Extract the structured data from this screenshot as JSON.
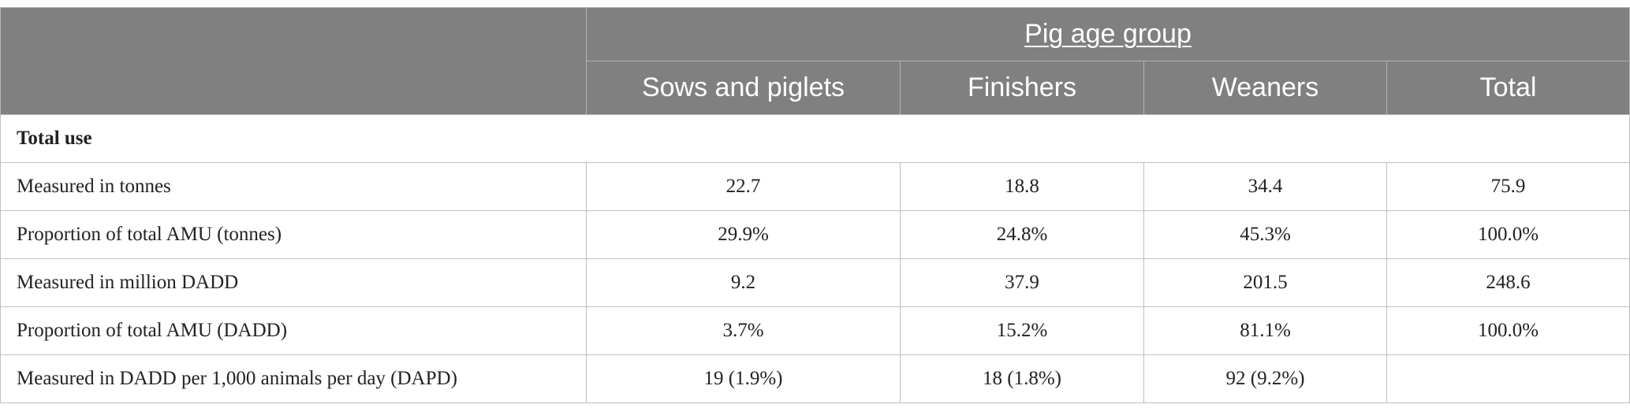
{
  "table": {
    "group_header": "Pig age group",
    "columns": [
      "Sows and piglets",
      "Finishers",
      "Weaners",
      "Total"
    ],
    "section_title": "Total use",
    "rows": [
      {
        "label": "Measured in tonnes",
        "values": [
          "22.7",
          "18.8",
          "34.4",
          "75.9"
        ]
      },
      {
        "label": "Proportion of total AMU (tonnes)",
        "values": [
          "29.9%",
          "24.8%",
          "45.3%",
          "100.0%"
        ]
      },
      {
        "label": "Measured in million DADD",
        "values": [
          "9.2",
          "37.9",
          "201.5",
          "248.6"
        ]
      },
      {
        "label": "Proportion of total AMU (DADD)",
        "values": [
          "3.7%",
          "15.2%",
          "81.1%",
          "100.0%"
        ]
      },
      {
        "label": "Measured in DADD per 1,000 animals per day (DAPD)",
        "values": [
          "19 (1.9%)",
          "18 (1.8%)",
          "92 (9.2%)",
          ""
        ]
      }
    ]
  },
  "colors": {
    "header_bg": "#808080",
    "header_text": "#ffffff",
    "grid": "#bfbfbf"
  }
}
